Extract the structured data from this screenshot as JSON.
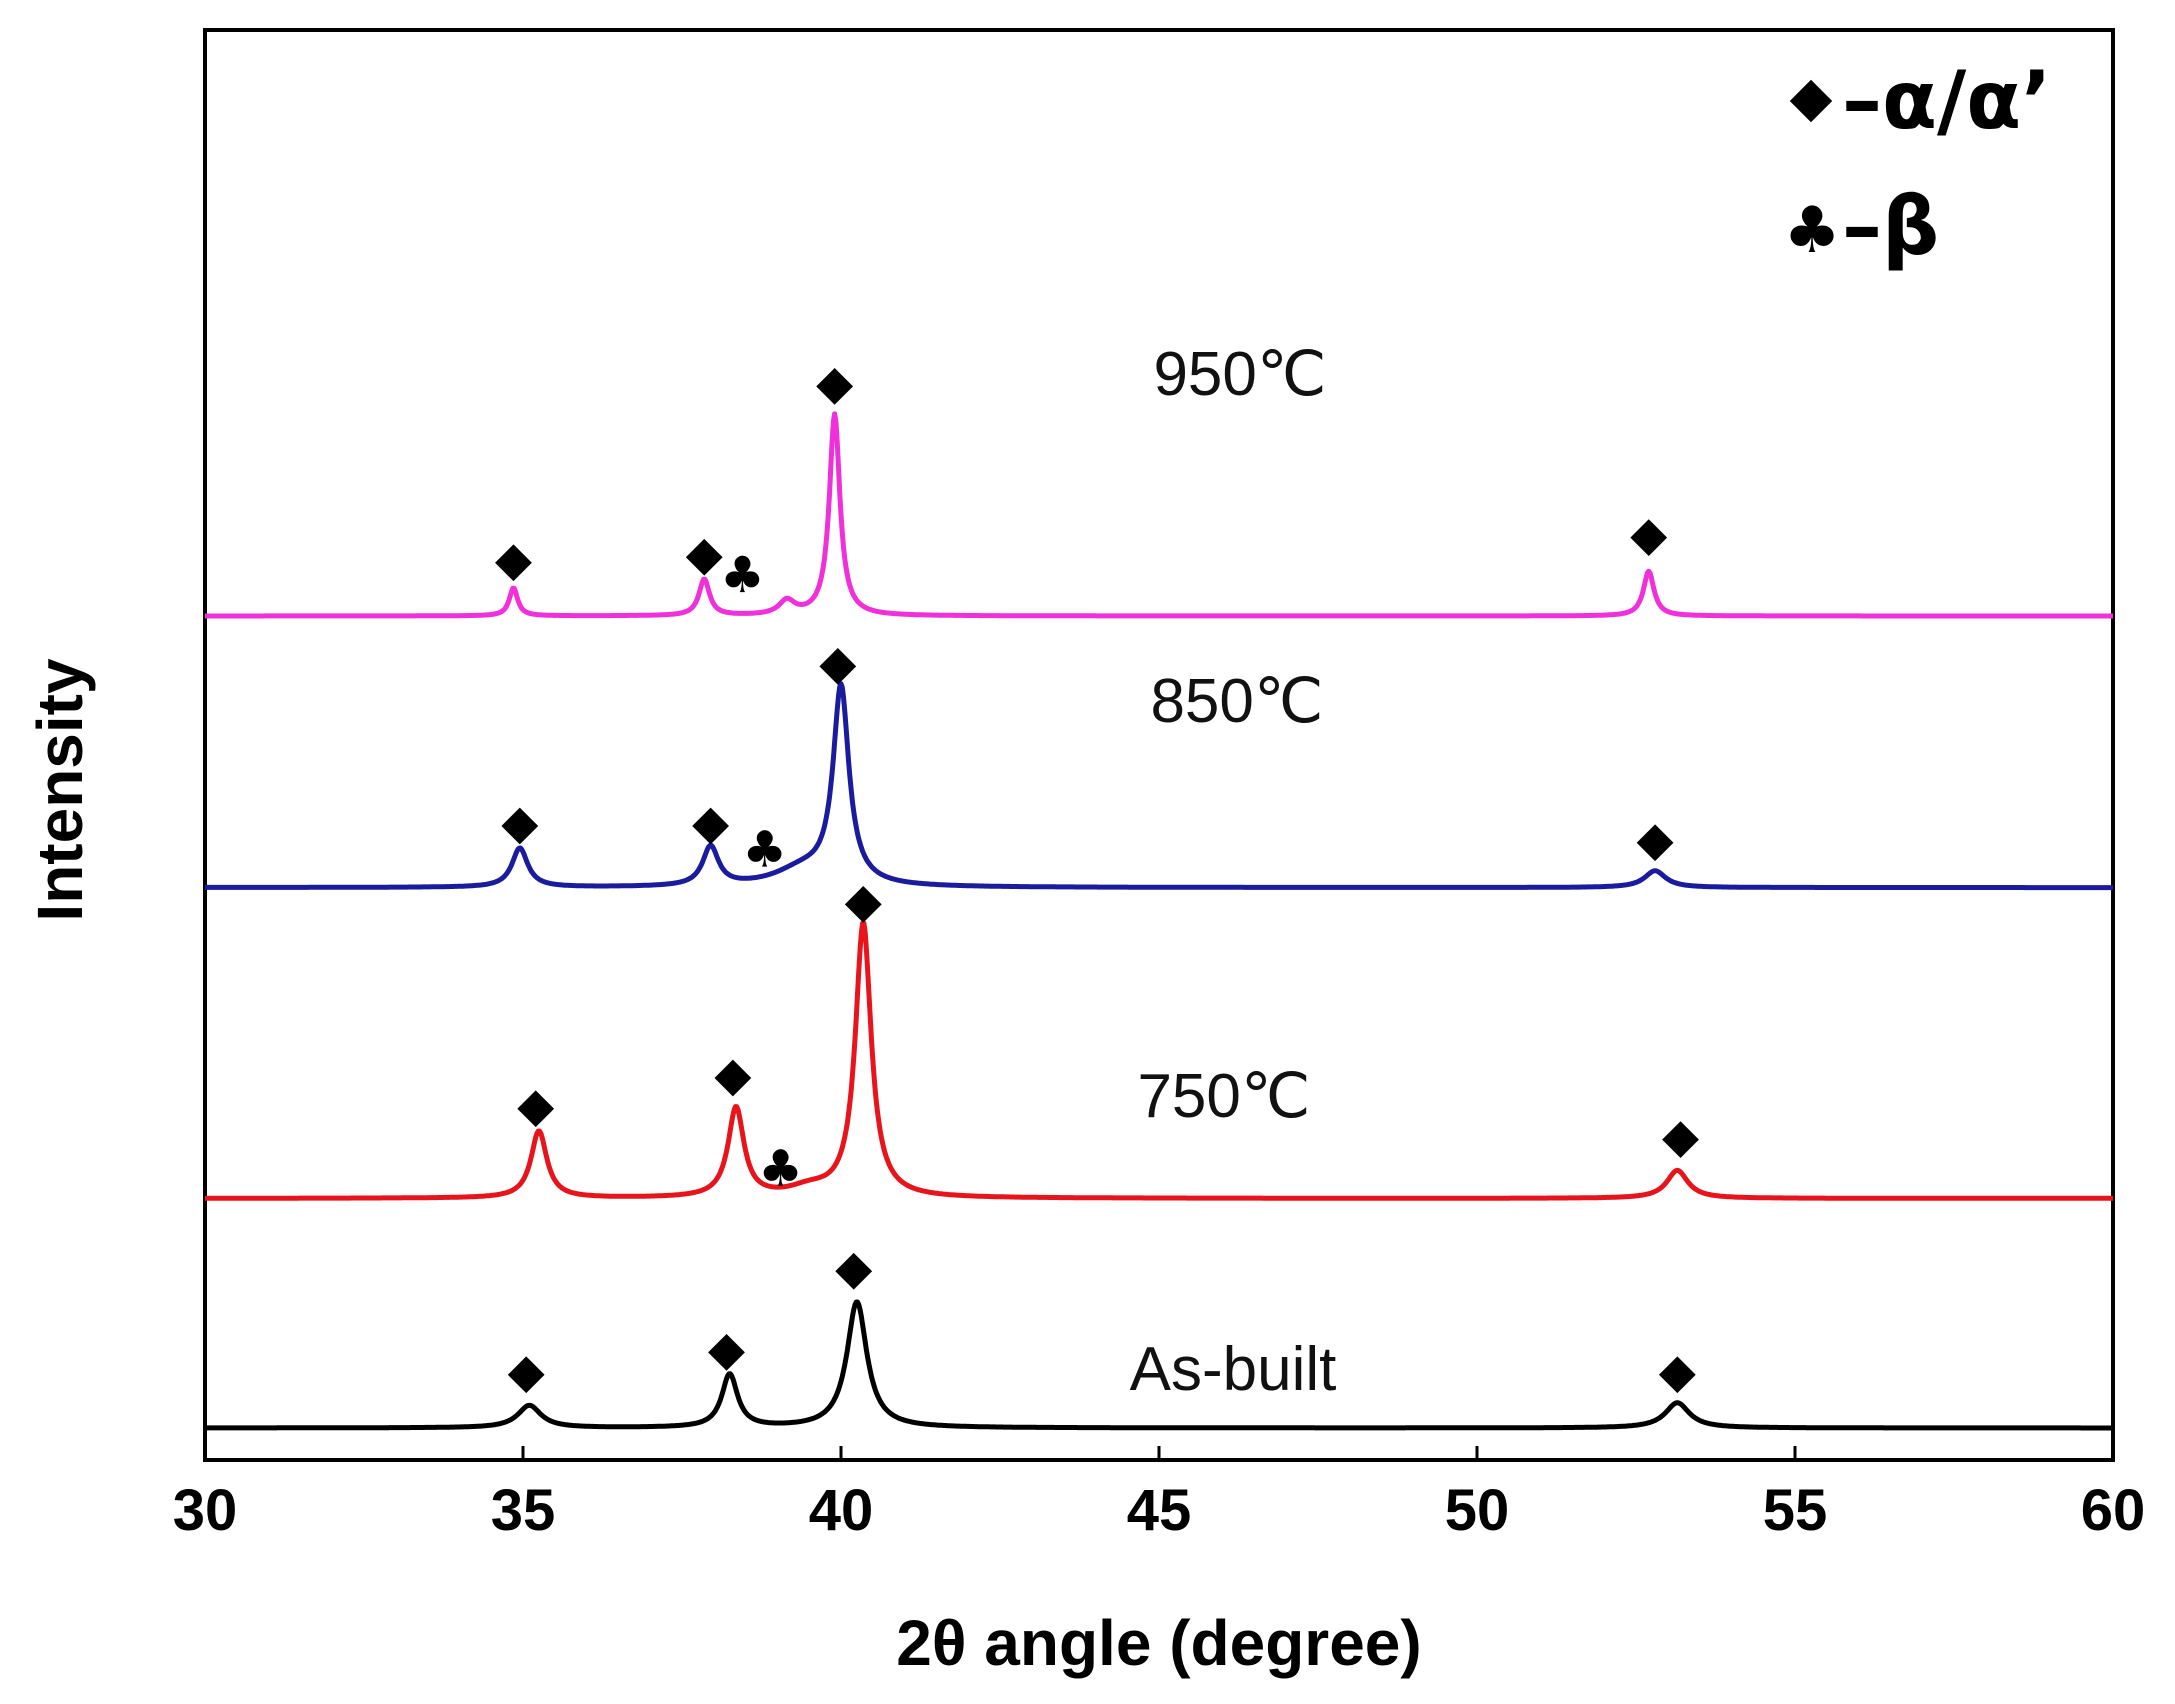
{
  "chart_data": {
    "type": "line",
    "title": "",
    "xlabel": "2θ angle (degree)",
    "ylabel": "Intensity",
    "xlim": [
      30,
      60
    ],
    "xticks": [
      30,
      35,
      40,
      45,
      50,
      55,
      60
    ],
    "yticks_shown": false,
    "legend": {
      "placement": "top-right",
      "entries": [
        {
          "marker": "diamond",
          "label": "–α/α’"
        },
        {
          "marker": "club",
          "label": "–β"
        }
      ]
    },
    "series": [
      {
        "name": "As-built",
        "label": "As-built",
        "color": "#000000",
        "baseline": 0,
        "peaks": [
          {
            "x": 35.1,
            "height": 8,
            "width": 0.22
          },
          {
            "x": 38.25,
            "height": 19,
            "width": 0.15
          },
          {
            "x": 40.25,
            "height": 45,
            "width": 0.19
          },
          {
            "x": 53.15,
            "height": 9,
            "width": 0.23
          }
        ],
        "alpha_markers": [
          {
            "x": 35.05,
            "y": 19
          },
          {
            "x": 38.2,
            "y": 27
          },
          {
            "x": 40.2,
            "y": 56
          },
          {
            "x": 53.15,
            "y": 19
          }
        ],
        "beta_markers": []
      },
      {
        "name": "750℃",
        "label": "750℃",
        "color": "#e8141b",
        "baseline": 82,
        "peaks": [
          {
            "x": 35.25,
            "height": 24,
            "width": 0.15
          },
          {
            "x": 38.35,
            "height": 32,
            "width": 0.15
          },
          {
            "x": 39.5,
            "height": 3,
            "width": 0.4
          },
          {
            "x": 40.35,
            "height": 98,
            "width": 0.15
          },
          {
            "x": 53.15,
            "height": 10,
            "width": 0.2
          }
        ],
        "alpha_markers": [
          {
            "x": 35.2,
            "y": 114
          },
          {
            "x": 38.3,
            "y": 125
          },
          {
            "x": 40.35,
            "y": 187
          },
          {
            "x": 53.2,
            "y": 103
          }
        ],
        "beta_markers": [
          {
            "x": 39.05,
            "y": 93
          }
        ]
      },
      {
        "name": "850℃",
        "label": "850℃",
        "color": "#1b1b9e",
        "baseline": 193,
        "peaks": [
          {
            "x": 34.95,
            "height": 14,
            "width": 0.15
          },
          {
            "x": 37.95,
            "height": 14,
            "width": 0.15
          },
          {
            "x": 39.4,
            "height": 6,
            "width": 0.55
          },
          {
            "x": 40.0,
            "height": 70,
            "width": 0.15
          },
          {
            "x": 52.8,
            "height": 6,
            "width": 0.2
          }
        ],
        "alpha_markers": [
          {
            "x": 34.95,
            "y": 215
          },
          {
            "x": 37.95,
            "y": 215
          },
          {
            "x": 39.95,
            "y": 272
          },
          {
            "x": 52.8,
            "y": 209
          }
        ],
        "beta_markers": [
          {
            "x": 38.8,
            "y": 207
          }
        ]
      },
      {
        "name": "950℃",
        "label": "950℃",
        "color": "#f030d8",
        "baseline": 290,
        "peaks": [
          {
            "x": 34.85,
            "height": 10,
            "width": 0.08
          },
          {
            "x": 37.85,
            "height": 13,
            "width": 0.1
          },
          {
            "x": 39.15,
            "height": 5,
            "width": 0.15
          },
          {
            "x": 39.9,
            "height": 72,
            "width": 0.1
          },
          {
            "x": 52.7,
            "height": 16,
            "width": 0.1
          }
        ],
        "alpha_markers": [
          {
            "x": 34.85,
            "y": 309
          },
          {
            "x": 37.85,
            "y": 311
          },
          {
            "x": 39.9,
            "y": 372
          },
          {
            "x": 52.7,
            "y": 318
          }
        ],
        "beta_markers": [
          {
            "x": 38.45,
            "y": 305
          }
        ]
      }
    ]
  }
}
